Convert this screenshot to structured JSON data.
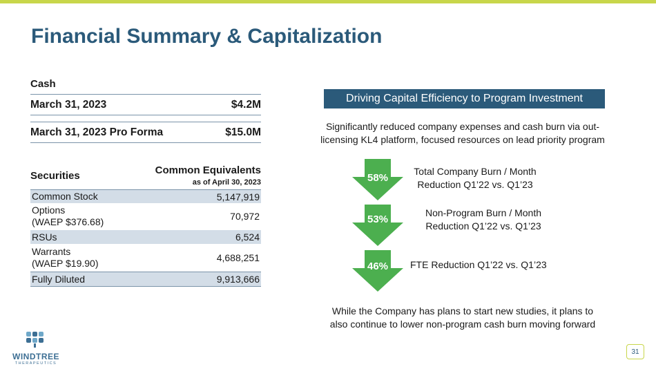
{
  "title": "Financial Summary & Capitalization",
  "cash": {
    "heading": "Cash",
    "rows": [
      {
        "label": "March 31, 2023",
        "value": "$4.2M"
      },
      {
        "label": "March 31, 2023 Pro Forma",
        "value": "$15.0M"
      }
    ]
  },
  "securities": {
    "col1": "Securities",
    "col2": "Common Equivalents",
    "col2_sub": "as of April 30, 2023",
    "rows": [
      {
        "name": "Common Stock",
        "name2": "",
        "value": "5,147,919"
      },
      {
        "name": "Options",
        "name2": "(WAEP $376.68)",
        "value": "70,972"
      },
      {
        "name": "RSUs",
        "name2": "",
        "value": "6,524"
      },
      {
        "name": "Warrants",
        "name2": "(WAEP $19.90)",
        "value": "4,688,251"
      },
      {
        "name": "Fully Diluted",
        "name2": "",
        "value": "9,913,666"
      }
    ]
  },
  "right": {
    "banner": "Driving Capital Efficiency to Program Investment",
    "intro_line1": "Significantly reduced company expenses and cash burn via out-",
    "intro_line2": "licensing KL4 platform, focused resources on lead priority program",
    "metrics": [
      {
        "pct": "58%",
        "line1": "Total Company Burn / Month",
        "line2": "Reduction Q1’22 vs. Q1’23"
      },
      {
        "pct": "53%",
        "line1": "Non-Program Burn / Month",
        "line2": "Reduction Q1’22 vs. Q1’23"
      },
      {
        "pct": "46%",
        "line1": "FTE Reduction Q1’22 vs. Q1’23",
        "line2": ""
      }
    ],
    "outro_line1": "While the Company has plans to start new studies, it plans to",
    "outro_line2": "also continue to lower non-program cash burn moving forward"
  },
  "logo": {
    "name": "WINDTREE",
    "sub": "THERAPEUTICS"
  },
  "page_number": "31",
  "colors": {
    "accent": "#c8d64a",
    "brand": "#2b5a7a",
    "arrow": "#4caf4f",
    "shade": "#d3dde7"
  }
}
